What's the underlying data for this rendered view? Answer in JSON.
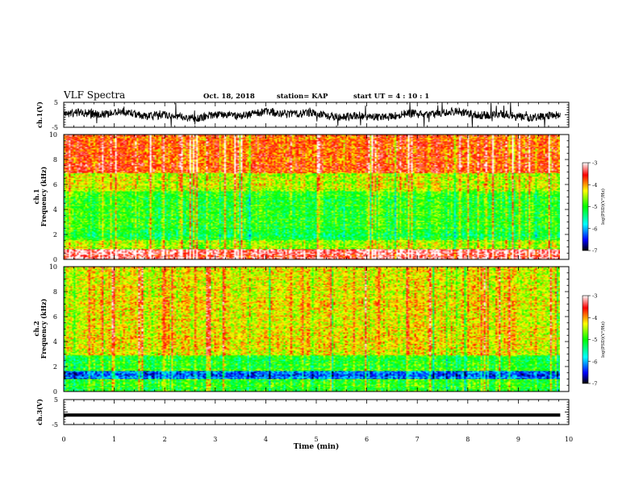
{
  "header": {
    "title": "VLF Spectra",
    "date": "Oct. 18, 2018",
    "station": "station= KAP",
    "start": "start  UT  =   4 : 10 : 1"
  },
  "chart_data": [
    {
      "id": "ch1-waveform",
      "type": "line",
      "ylabel": "ch.1(V)",
      "ytick_labels": [
        "5",
        "-5"
      ],
      "ylim": [
        -5,
        5
      ],
      "xlim": [
        0,
        10
      ],
      "x_end_min": 9.83,
      "note_values": "noisy waveform roughly between -3 and 3 V"
    },
    {
      "id": "ch1-spectrogram",
      "type": "heatmap",
      "ylabel_top": "ch.1",
      "ylabel": "Frequency (kHz)",
      "ytick_labels": [
        "0",
        "2",
        "4",
        "6",
        "8",
        "10"
      ],
      "ylim": [
        0,
        10
      ],
      "xlim": [
        0,
        10
      ],
      "colorbar": {
        "label": "log(PSD)(V²/Hz)",
        "tick_labels": [
          "-3",
          "-4",
          "-5",
          "-6",
          "-7"
        ],
        "range": [
          -7,
          -3
        ]
      },
      "bands": [
        {
          "from_khz": 0,
          "to_khz": 0.9,
          "level": -3.3
        },
        {
          "from_khz": 0.9,
          "to_khz": 1.6,
          "level": -4.6
        },
        {
          "from_khz": 1.6,
          "to_khz": 2.2,
          "level": -5.2
        },
        {
          "from_khz": 2.2,
          "to_khz": 5.5,
          "level": -5.0
        },
        {
          "from_khz": 5.5,
          "to_khz": 7.0,
          "level": -4.4
        },
        {
          "from_khz": 7.0,
          "to_khz": 10,
          "level": -3.8
        }
      ]
    },
    {
      "id": "ch2-spectrogram",
      "type": "heatmap",
      "ylabel_top": "ch.2",
      "ylabel": "Frequency (kHz)",
      "ytick_labels": [
        "0",
        "2",
        "4",
        "6",
        "8",
        "10"
      ],
      "ylim": [
        0,
        10
      ],
      "xlim": [
        0,
        10
      ],
      "colorbar": {
        "label": "log(PSD)(V²/Hz)",
        "tick_labels": [
          "-3",
          "-4",
          "-5",
          "-6",
          "-7"
        ],
        "range": [
          -7,
          -3
        ]
      },
      "bands": [
        {
          "from_khz": 0,
          "to_khz": 1.0,
          "level": -5.0
        },
        {
          "from_khz": 1.0,
          "to_khz": 1.7,
          "level": -6.2
        },
        {
          "from_khz": 1.7,
          "to_khz": 3.0,
          "level": -5.0
        },
        {
          "from_khz": 3.0,
          "to_khz": 10,
          "level": -4.3
        }
      ]
    },
    {
      "id": "ch3-waveform",
      "type": "line",
      "ylabel": "ch.3(V)",
      "ytick_labels": [
        "5",
        "-5"
      ],
      "ylim": [
        -5,
        5
      ],
      "xlim": [
        0,
        10
      ],
      "x_end_min": 9.83,
      "constant_value": -1.2,
      "xlabel": "Time (min)",
      "xtick_labels": [
        "0",
        "1",
        "2",
        "3",
        "4",
        "5",
        "6",
        "7",
        "8",
        "9",
        "10"
      ]
    }
  ]
}
